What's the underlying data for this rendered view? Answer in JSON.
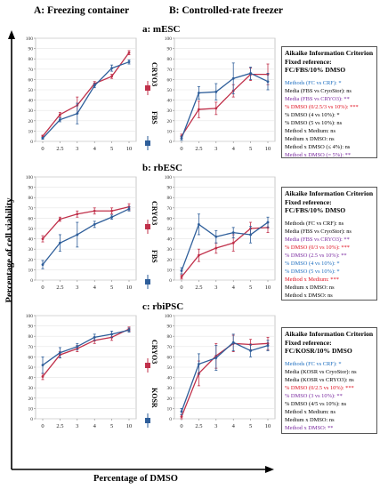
{
  "headers": {
    "left": "A: Freezing container",
    "right": "B: Controlled-rate freezer"
  },
  "axis": {
    "ylabel": "Percentage of cell viability",
    "xlabel": "Percentage of DMSO"
  },
  "colors": {
    "cryo3": "#c0304a",
    "fbs": "#2e5e9a",
    "blue_text": "#1f6fc0",
    "red_text": "#e01020",
    "purple_text": "#7a2aa0"
  },
  "legend_labels": [
    {
      "text": "CRYO3",
      "color": "#c0304a"
    },
    {
      "text": "FBS",
      "color": "#2e5e9a"
    },
    {
      "text": "CRYO3",
      "color": "#c0304a"
    },
    {
      "text": "FBS",
      "color": "#2e5e9a"
    },
    {
      "text": "CRYO3",
      "color": "#c0304a"
    },
    {
      "text": "KOSR",
      "color": "#2e5e9a"
    }
  ],
  "panels": [
    {
      "title": "a: mESC",
      "aic": {
        "title1": "Aikaike Information Criterion",
        "title2": "Fixed reference:",
        "title3": "FC/FBS/10% DMSO",
        "lines": [
          {
            "text": "Methods (FC vs CRF): *",
            "color": "#1f6fc0"
          },
          {
            "text": "Media (FBS vs CryoStor): ns",
            "color": "#000000"
          },
          {
            "text": "Media (FBS vs CRYO3): **",
            "color": "#7a2aa0"
          },
          {
            "text": "% DMSO (0/2.5/3 vs 10%): ***",
            "color": "#e01020"
          },
          {
            "text": "% DMSO (4 vs 10%): *",
            "color": "#000000"
          },
          {
            "text": "% DMSO (5 vs 10%): ns",
            "color": "#000000"
          },
          {
            "text": "Method x Medium: ns",
            "color": "#000000"
          },
          {
            "text": "Medium x DMSO: ns",
            "color": "#000000"
          },
          {
            "text": "Method x DMSO (≤ 4%): ns",
            "color": "#000000"
          },
          {
            "text": "Method x DMSO (= 5%): **",
            "color": "#7a2aa0"
          }
        ]
      }
    },
    {
      "title": "b: rbESC",
      "aic": {
        "title1": "Aikaike Information Criterion",
        "title2": "Fixed reference:",
        "title3": "FC/FBS/10% DMSO",
        "lines": [
          {
            "text": "Methods (FC vs CRF): ns",
            "color": "#000000"
          },
          {
            "text": "Media (FBS vs CryoStor): ns",
            "color": "#000000"
          },
          {
            "text": "Media (FBS vs CRYO3): **",
            "color": "#7a2aa0"
          },
          {
            "text": "% DMSO (0/3 vs 10%): ***",
            "color": "#e01020"
          },
          {
            "text": "% DMSO (2.5 vs 10%): **",
            "color": "#7a2aa0"
          },
          {
            "text": "% DMSO (4 vs 10%): *",
            "color": "#1f6fc0"
          },
          {
            "text": "% DMSO (5 vs 10%): *",
            "color": "#1f6fc0"
          },
          {
            "text": "Method x Medium: ***",
            "color": "#e01020"
          },
          {
            "text": "Medium x DMSO: ns",
            "color": "#000000"
          },
          {
            "text": "Method x DMSO: ns",
            "color": "#000000"
          }
        ]
      }
    },
    {
      "title": "c: rbiPSC",
      "aic": {
        "title1": "Aikaike Information Criterion",
        "title2": "Fixed reference:",
        "title3": "FC/KOSR/10% DMSO",
        "lines": [
          {
            "text": "Methods (FC vs CRF): *",
            "color": "#1f6fc0"
          },
          {
            "text": "Media (KOSR vs CryoStor): ns",
            "color": "#000000"
          },
          {
            "text": "Media (KOSR vs CRYO3): ns",
            "color": "#000000"
          },
          {
            "text": "% DMSO (0/2.5 vs 10%): ***",
            "color": "#e01020"
          },
          {
            "text": "% DMSO (3 vs 10%): **",
            "color": "#7a2aa0"
          },
          {
            "text": "% DMSO (4/5 vs 10%): ns",
            "color": "#000000"
          },
          {
            "text": "Method x Medium: ns",
            "color": "#000000"
          },
          {
            "text": "Medium x DMSO: ns",
            "color": "#000000"
          },
          {
            "text": "Method x DMSO: **",
            "color": "#7a2aa0"
          }
        ]
      }
    }
  ],
  "chart_data": [
    {
      "type": "line",
      "panel": "a: mESC",
      "method": "Freezing container",
      "categories": [
        "0",
        "2.5",
        "3",
        "4",
        "5",
        "10"
      ],
      "ylim": [
        0,
        100
      ],
      "yticks": [
        0,
        10,
        20,
        30,
        40,
        50,
        60,
        70,
        80,
        90,
        100
      ],
      "series": [
        {
          "name": "CRYO3",
          "color": "#c0304a",
          "values": [
            5,
            26,
            35,
            56,
            63,
            86
          ],
          "errors": [
            1,
            2,
            8,
            2,
            2,
            2
          ]
        },
        {
          "name": "FBS",
          "color": "#2e5e9a",
          "values": [
            3,
            21,
            27,
            54,
            71,
            77
          ],
          "errors": [
            1,
            2,
            10,
            2,
            3,
            2
          ]
        }
      ]
    },
    {
      "type": "line",
      "panel": "a: mESC",
      "method": "Controlled-rate freezer",
      "categories": [
        "0",
        "2.5",
        "3",
        "4",
        "5",
        "10"
      ],
      "ylim": [
        0,
        100
      ],
      "yticks": [
        0,
        10,
        20,
        30,
        40,
        50,
        60,
        70,
        80,
        90,
        100
      ],
      "series": [
        {
          "name": "CRYO3",
          "color": "#c0304a",
          "values": [
            5,
            31,
            32,
            49,
            65,
            65
          ],
          "errors": [
            2,
            8,
            6,
            6,
            6,
            10
          ]
        },
        {
          "name": "FBS",
          "color": "#2e5e9a",
          "values": [
            3,
            47,
            48,
            61,
            66,
            58
          ],
          "errors": [
            2,
            6,
            8,
            15,
            6,
            8
          ]
        }
      ]
    },
    {
      "type": "line",
      "panel": "b: rbESC",
      "method": "Freezing container",
      "categories": [
        "0",
        "2.5",
        "3",
        "4",
        "5",
        "10"
      ],
      "ylim": [
        0,
        100
      ],
      "yticks": [
        0,
        10,
        20,
        30,
        40,
        50,
        60,
        70,
        80,
        90,
        100
      ],
      "series": [
        {
          "name": "CRYO3",
          "color": "#c0304a",
          "values": [
            40,
            59,
            64,
            67,
            67,
            71
          ],
          "errors": [
            3,
            2,
            3,
            3,
            3,
            3
          ]
        },
        {
          "name": "FBS",
          "color": "#2e5e9a",
          "values": [
            15,
            36,
            44,
            54,
            61,
            69
          ],
          "errors": [
            4,
            8,
            12,
            3,
            2,
            2
          ]
        }
      ]
    },
    {
      "type": "line",
      "panel": "b: rbESC",
      "method": "Controlled-rate freezer",
      "categories": [
        "0",
        "2.5",
        "3",
        "4",
        "5",
        "10"
      ],
      "ylim": [
        0,
        100
      ],
      "yticks": [
        0,
        10,
        20,
        30,
        40,
        50,
        60,
        70,
        80,
        90,
        100
      ],
      "series": [
        {
          "name": "CRYO3",
          "color": "#c0304a",
          "values": [
            3,
            24,
            31,
            36,
            50,
            51
          ],
          "errors": [
            2,
            6,
            5,
            8,
            6,
            5
          ]
        },
        {
          "name": "FBS",
          "color": "#2e5e9a",
          "values": [
            9,
            54,
            42,
            46,
            44,
            56
          ],
          "errors": [
            3,
            10,
            6,
            5,
            8,
            5
          ]
        }
      ]
    },
    {
      "type": "line",
      "panel": "c: rbiPSC",
      "method": "Freezing container",
      "categories": [
        "0",
        "2.5",
        "3",
        "4",
        "5",
        "10"
      ],
      "ylim": [
        0,
        100
      ],
      "yticks": [
        0,
        10,
        20,
        30,
        40,
        50,
        60,
        70,
        80,
        90,
        100
      ],
      "series": [
        {
          "name": "CRYO3",
          "color": "#c0304a",
          "values": [
            41,
            62,
            68,
            76,
            79,
            87
          ],
          "errors": [
            3,
            3,
            3,
            3,
            3,
            2
          ]
        },
        {
          "name": "KOSR",
          "color": "#2e5e9a",
          "values": [
            52,
            64,
            70,
            79,
            82,
            86
          ],
          "errors": [
            8,
            5,
            3,
            3,
            3,
            2
          ]
        }
      ]
    },
    {
      "type": "line",
      "panel": "c: rbiPSC",
      "method": "Controlled-rate freezer",
      "categories": [
        "0",
        "2.5",
        "3",
        "4",
        "5",
        "10"
      ],
      "ylim": [
        0,
        100
      ],
      "yticks": [
        0,
        10,
        20,
        30,
        40,
        50,
        60,
        70,
        80,
        90,
        100
      ],
      "series": [
        {
          "name": "CRYO3",
          "color": "#c0304a",
          "values": [
            2,
            44,
            61,
            73,
            72,
            73
          ],
          "errors": [
            2,
            12,
            12,
            8,
            5,
            6
          ]
        },
        {
          "name": "KOSR",
          "color": "#2e5e9a",
          "values": [
            7,
            53,
            59,
            74,
            66,
            71
          ],
          "errors": [
            3,
            10,
            12,
            8,
            6,
            5
          ]
        }
      ]
    }
  ]
}
